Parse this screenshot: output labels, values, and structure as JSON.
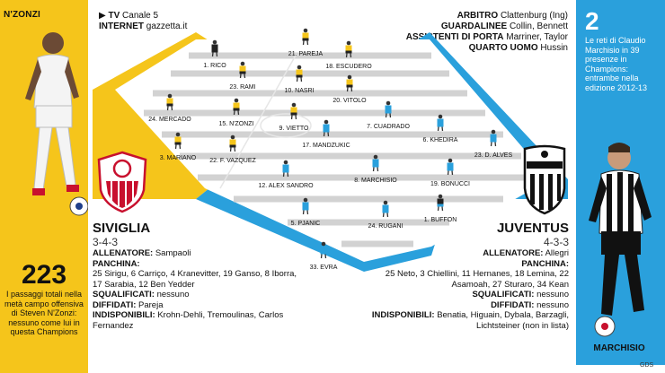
{
  "left_sidebar": {
    "player_name": "N'ZONZI",
    "stat_value": "223",
    "stat_text": "I passaggi totali nella metà campo offensiva di Steven N'Zonzi: nessuno come lui in questa Champions",
    "color": "#f5c51b"
  },
  "right_sidebar": {
    "stat_value": "2",
    "stat_text": "Le reti di Claudio Marchisio in 39 presenze in Champions: entrambe nella edizione 2012-13",
    "player_name": "MARCHISIO",
    "color": "#2aa0dc"
  },
  "broadcast": {
    "tv_label": "TV",
    "tv_value": "Canale 5",
    "internet_label": "INTERNET",
    "internet_value": "gazzetta.it"
  },
  "officials": [
    {
      "label": "ARBITRO",
      "value": "Clattenburg (Ing)"
    },
    {
      "label": "GUARDALINEE",
      "value": "Collin, Bennett"
    },
    {
      "label": "ASSISTENTI DI PORTA",
      "value": "Marriner, Taylor"
    },
    {
      "label": "QUARTO UOMO",
      "value": "Hussin"
    }
  ],
  "home_team": {
    "name": "SIVIGLIA",
    "formation": "3-4-3",
    "coach_label": "ALLENATORE:",
    "coach": "Sampaoli",
    "bench_label": "PANCHINA:",
    "bench": "25 Sirigu, 6 Carriço, 4 Kranevitter, 19 Ganso, 8 Iborra, 17 Sarabia, 12 Ben Yedder",
    "suspended_label": "SQUALIFICATI:",
    "suspended": "nessuno",
    "warned_label": "DIFFIDATI:",
    "warned": "Pareja",
    "unavailable_label": "INDISPONIBILI:",
    "unavailable": "Krohn-Dehli, Tremoulinas, Carlos Fernandez",
    "players": [
      {
        "label": "1. RICO"
      },
      {
        "label": "21. PAREJA"
      },
      {
        "label": "18. ESCUDERO"
      },
      {
        "label": "23. RAMI"
      },
      {
        "label": "10. NASRI"
      },
      {
        "label": "20. VITOLO"
      },
      {
        "label": "24. MERCADO"
      },
      {
        "label": "15. N'ZONZI"
      },
      {
        "label": "9. VIETTO"
      },
      {
        "label": "3. MARIANO"
      },
      {
        "label": "22. F. VAZQUEZ"
      }
    ],
    "color": "#f5c51b"
  },
  "away_team": {
    "name": "JUVENTUS",
    "formation": "4-3-3",
    "coach_label": "ALLENATORE:",
    "coach": "Allegri",
    "bench_label": "PANCHINA:",
    "bench": "25 Neto, 3 Chiellini, 11 Hernanes, 18 Lemina, 22 Asamoah, 27 Sturaro, 34 Kean",
    "suspended_label": "SQUALIFICATI:",
    "suspended": "nessuno",
    "warned_label": "DIFFIDATI:",
    "warned": "nessuno",
    "unavailable_label": "INDISPONIBILI:",
    "unavailable": "Benatia, Higuain, Dybala, Barzagli, Lichtsteiner (non in lista)",
    "players": [
      {
        "label": "17. MANDZUKIC"
      },
      {
        "label": "7. CUADRADO"
      },
      {
        "label": "6. KHEDIRA"
      },
      {
        "label": "23. D. ALVES"
      },
      {
        "label": "12. ALEX SANDRO"
      },
      {
        "label": "8. MARCHISIO"
      },
      {
        "label": "19. BONUCCI"
      },
      {
        "label": "5. PJANIC"
      },
      {
        "label": "24. RUGANI"
      },
      {
        "label": "1. BUFFON"
      },
      {
        "label": "33. EVRA"
      }
    ],
    "color": "#2aa0dc"
  },
  "credit": "GDS"
}
